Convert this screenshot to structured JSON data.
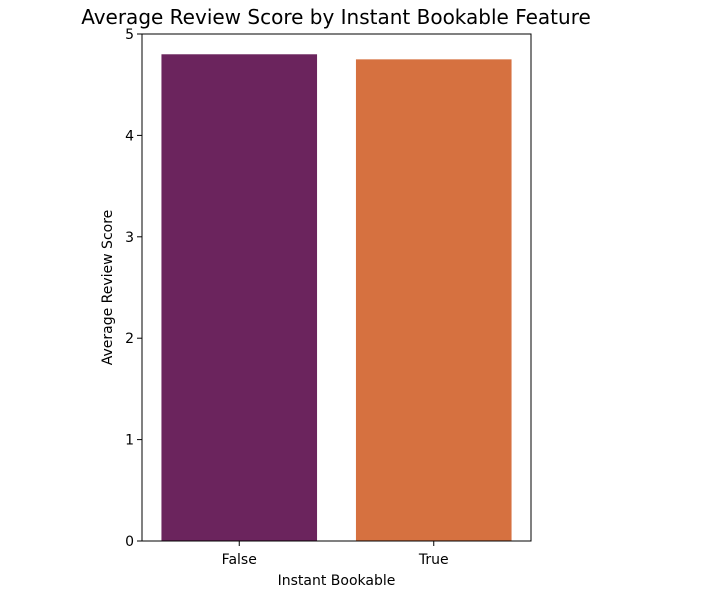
{
  "chart_data": {
    "type": "bar",
    "title": "Average Review Score by Instant Bookable Feature",
    "xlabel": "Instant Bookable",
    "ylabel": "Average Review Score",
    "categories": [
      "False",
      "True"
    ],
    "values": [
      4.8,
      4.75
    ],
    "colors": [
      "#6b245d",
      "#d67140"
    ],
    "ylim": [
      0,
      5
    ],
    "yticks": [
      "0",
      "1",
      "2",
      "3",
      "4",
      "5"
    ],
    "grid": false,
    "legend": "none"
  }
}
